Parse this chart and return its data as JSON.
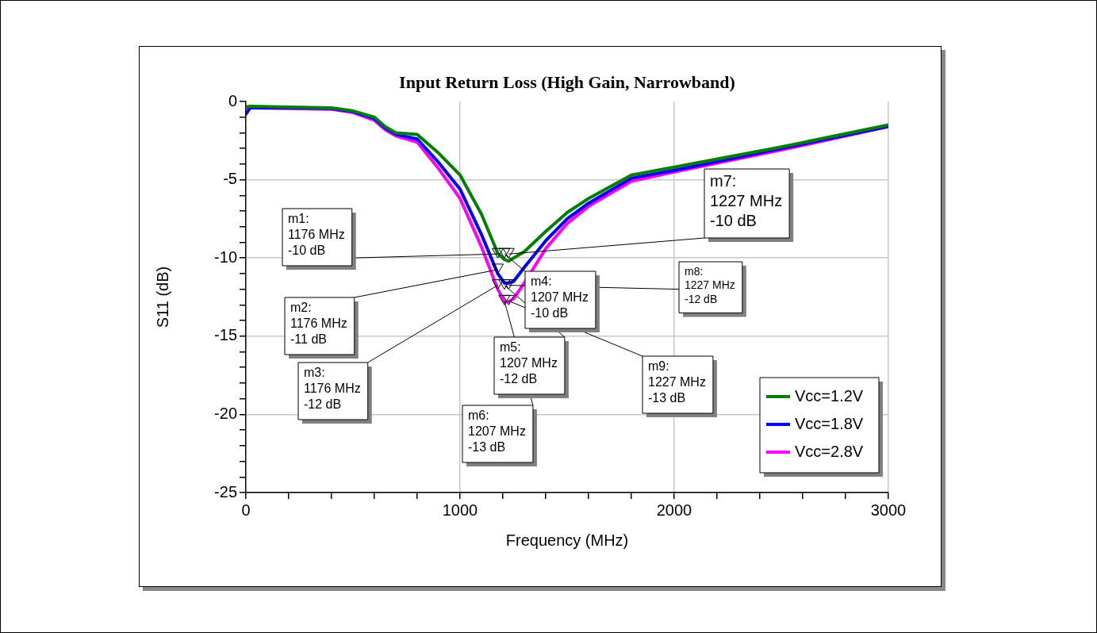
{
  "chart_data": {
    "type": "line",
    "title": "Input Return Loss (High Gain, Narrowband)",
    "xlabel": "Frequency (MHz)",
    "ylabel": "S11 (dB)",
    "x": [
      0,
      20,
      200,
      400,
      500,
      600,
      650,
      700,
      800,
      900,
      1000,
      1100,
      1176,
      1207,
      1227,
      1250,
      1300,
      1400,
      1500,
      1600,
      1800,
      2000,
      2500,
      3000
    ],
    "series": [
      {
        "name": "Vcc=1.2V",
        "color": "#007f00",
        "values": [
          -0.35,
          -0.3,
          -0.35,
          -0.4,
          -0.6,
          -1.0,
          -1.6,
          -2.0,
          -2.1,
          -3.3,
          -4.7,
          -7.2,
          -9.7,
          -10.1,
          -10.2,
          -10.0,
          -9.6,
          -8.3,
          -7.1,
          -6.2,
          -4.7,
          -4.2,
          -2.9,
          -1.5
        ]
      },
      {
        "name": "Vcc=1.8V",
        "color": "#0000ff",
        "values": [
          -0.8,
          -0.4,
          -0.4,
          -0.45,
          -0.65,
          -1.1,
          -1.7,
          -2.1,
          -2.4,
          -3.9,
          -5.6,
          -8.5,
          -11.0,
          -11.6,
          -11.6,
          -11.5,
          -10.6,
          -8.9,
          -7.5,
          -6.5,
          -4.9,
          -4.4,
          -3.0,
          -1.6
        ]
      },
      {
        "name": "Vcc=2.8V",
        "color": "#ff00ff",
        "values": [
          -0.4,
          -0.4,
          -0.45,
          -0.5,
          -0.7,
          -1.2,
          -1.8,
          -2.2,
          -2.6,
          -4.3,
          -6.2,
          -9.3,
          -12.0,
          -12.8,
          -12.8,
          -12.6,
          -11.6,
          -9.4,
          -7.8,
          -6.7,
          -5.1,
          -4.5,
          -3.1,
          -1.6
        ]
      }
    ],
    "xlim": [
      0,
      3000
    ],
    "xticks": [
      0,
      {
        "value": 200,
        "label": null
      },
      {
        "value": 400,
        "label": null
      },
      {
        "value": 600,
        "label": null
      },
      {
        "value": 800,
        "label": null
      },
      1000,
      {
        "value": 1200,
        "label": null
      },
      {
        "value": 1400,
        "label": null
      },
      {
        "value": 1600,
        "label": null
      },
      {
        "value": 1800,
        "label": null
      },
      2000,
      {
        "value": 2200,
        "label": null
      },
      {
        "value": 2400,
        "label": null
      },
      {
        "value": 2600,
        "label": null
      },
      {
        "value": 2800,
        "label": null
      },
      3000
    ],
    "ylim": [
      -25,
      0
    ],
    "yticks": [
      -25,
      {
        "value": -24,
        "label": null
      },
      {
        "value": -23,
        "label": null
      },
      {
        "value": -22,
        "label": null
      },
      {
        "value": -21,
        "label": null
      },
      -20,
      {
        "value": -19,
        "label": null
      },
      {
        "value": -18,
        "label": null
      },
      {
        "value": -17,
        "label": null
      },
      {
        "value": -16,
        "label": null
      },
      -15,
      {
        "value": -14,
        "label": null
      },
      {
        "value": -13,
        "label": null
      },
      {
        "value": -12,
        "label": null
      },
      {
        "value": -11,
        "label": null
      },
      -10,
      {
        "value": -9,
        "label": null
      },
      {
        "value": -8,
        "label": null
      },
      {
        "value": -7,
        "label": null
      },
      {
        "value": -6,
        "label": null
      },
      -5,
      {
        "value": -4,
        "label": null
      },
      {
        "value": -3,
        "label": null
      },
      {
        "value": -2,
        "label": null
      },
      {
        "value": -1,
        "label": null
      },
      0
    ],
    "grid": true,
    "legend": "bottom right",
    "marker": "none",
    "line_style": "solid",
    "annotations": [
      {
        "text": "m1:\n1176 MHz\n-10 dB",
        "x": 1176,
        "y": -10
      },
      {
        "text": "m2:\n1176 MHz\n-11 dB",
        "x": 1176,
        "y": -11
      },
      {
        "text": "m3:\n1176 MHz\n-12 dB",
        "x": 1176,
        "y": -12
      },
      {
        "text": "m4:\n1207 MHz\n-10 dB",
        "x": 1207,
        "y": -10
      },
      {
        "text": "m5:\n1207 MHz\n-12 dB",
        "x": 1207,
        "y": -12
      },
      {
        "text": "m6:\n1207 MHz\n-13 dB",
        "x": 1207,
        "y": -13
      },
      {
        "text": "m7:\n1227 MHz\n-10 dB",
        "x": 1227,
        "y": -10
      },
      {
        "text": "m8:\n1227 MHz\n-12 dB",
        "x": 1227,
        "y": -12
      },
      {
        "text": "m9:\n1227 MHz\n-13 dB",
        "x": 1227,
        "y": -13
      }
    ]
  }
}
